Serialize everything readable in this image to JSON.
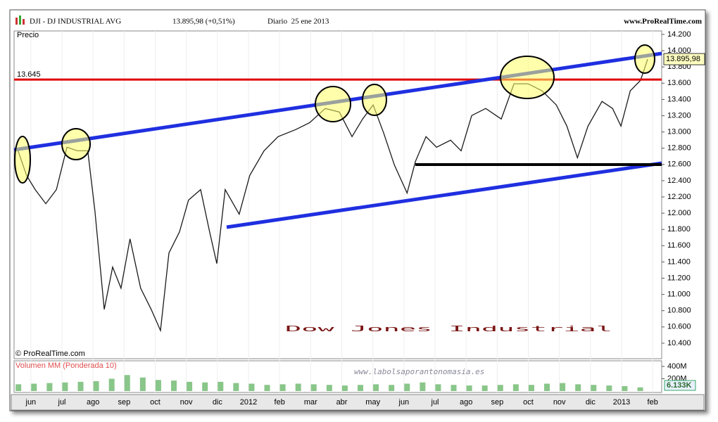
{
  "chart_data": [
    {
      "type": "line",
      "header": {
        "symbol": "DJI - DJ INDUSTRIAL AVG",
        "quote": "13.895,98 (+0,51%)",
        "period": "Diario  25 ene 2013",
        "source": "www.ProRealTime.com"
      },
      "panel_label": "Precio",
      "copyright": "© ProRealTime.com",
      "annotation": "Dow Jones Industrial",
      "watermark": "www.labolsaporantonomasia.es",
      "x": [
        -0.41,
        -0.14,
        0.14,
        0.48,
        0.82,
        1.16,
        1.49,
        1.83,
        2.06,
        2.36,
        2.63,
        2.9,
        3.19,
        3.53,
        3.87,
        4.17,
        4.44,
        4.78,
        5.07,
        5.46,
        5.75,
        5.98,
        6.25,
        6.7,
        7.04,
        7.5,
        7.95,
        8.52,
        8.97,
        9.47,
        9.92,
        10.33,
        10.67,
        11.01,
        11.35,
        11.69,
        12.1,
        12.37,
        12.71,
        13.05,
        13.5,
        13.84,
        14.18,
        14.63,
        15.13,
        15.54,
        15.99,
        16.44,
        16.9,
        17.24,
        17.58,
        17.92,
        18.37,
        18.71,
        18.98,
        19.28,
        19.61,
        19.84
      ],
      "values": [
        12768,
        12465,
        12290,
        12117,
        12290,
        12812,
        12768,
        12768,
        12030,
        10816,
        11337,
        11076,
        11684,
        11076,
        10816,
        10556,
        11510,
        11770,
        12161,
        12290,
        11770,
        11380,
        12290,
        11987,
        12465,
        12768,
        12942,
        13029,
        13115,
        13289,
        13246,
        12942,
        13159,
        13332,
        12985,
        12595,
        12248,
        12638,
        12942,
        12812,
        12899,
        12768,
        13202,
        13289,
        13159,
        13593,
        13593,
        13506,
        13332,
        13072,
        12682,
        13072,
        13376,
        13289,
        13072,
        13506,
        13636,
        13896
      ],
      "color": "#1a1a1a",
      "xlim": [
        -0.54,
        20.29
      ],
      "xticks": [
        {
          "value": 0,
          "label": "jun"
        },
        {
          "value": 1,
          "label": "jul"
        },
        {
          "value": 2,
          "label": "ago"
        },
        {
          "value": 3,
          "label": "sep"
        },
        {
          "value": 4,
          "label": "oct"
        },
        {
          "value": 5,
          "label": "nov"
        },
        {
          "value": 6,
          "label": "dic"
        },
        {
          "value": 7,
          "label": "2012"
        },
        {
          "value": 8,
          "label": "feb"
        },
        {
          "value": 9,
          "label": "mar"
        },
        {
          "value": 10,
          "label": "abr"
        },
        {
          "value": 11,
          "label": "may"
        },
        {
          "value": 12,
          "label": "jun"
        },
        {
          "value": 13,
          "label": "jul"
        },
        {
          "value": 14,
          "label": "ago"
        },
        {
          "value": 15,
          "label": "sep"
        },
        {
          "value": 16,
          "label": "oct"
        },
        {
          "value": 17,
          "label": "nov"
        },
        {
          "value": 18,
          "label": "dic"
        },
        {
          "value": 19,
          "label": "2013"
        },
        {
          "value": 20,
          "label": "feb"
        }
      ],
      "ylim": [
        10209,
        14243
      ],
      "yticks": [
        {
          "value": 10400,
          "label": "10.400"
        },
        {
          "value": 10600,
          "label": "10.600"
        },
        {
          "value": 10800,
          "label": "10.800"
        },
        {
          "value": 11000,
          "label": "11.000"
        },
        {
          "value": 11200,
          "label": "11.200"
        },
        {
          "value": 11400,
          "label": "11.400"
        },
        {
          "value": 11600,
          "label": "11.600"
        },
        {
          "value": 11800,
          "label": "11.800"
        },
        {
          "value": 12000,
          "label": "12.000"
        },
        {
          "value": 12200,
          "label": "12.200"
        },
        {
          "value": 12400,
          "label": "12.400"
        },
        {
          "value": 12600,
          "label": "12.600"
        },
        {
          "value": 12800,
          "label": "12.800"
        },
        {
          "value": 13000,
          "label": "13.000"
        },
        {
          "value": 13200,
          "label": "13.200"
        },
        {
          "value": 13400,
          "label": "13.400"
        },
        {
          "value": 13600,
          "label": "13.600"
        },
        {
          "value": 13800,
          "label": "13.800"
        },
        {
          "value": 14000,
          "label": "14.000"
        },
        {
          "value": 14200,
          "label": "14.200"
        }
      ],
      "hline": {
        "value": 13645,
        "label": "13.645",
        "color": "#e00000"
      },
      "last_value": {
        "value": 13895.98,
        "label": "13.895,98"
      }
    },
    {
      "type": "bar",
      "title": "Volumen MM (Ponderada 10)",
      "x": [
        -0.4,
        0.1,
        0.6,
        1.1,
        1.6,
        2.1,
        2.6,
        3.1,
        3.6,
        4.1,
        4.6,
        5.1,
        5.6,
        6.1,
        6.6,
        7.1,
        7.6,
        8.1,
        8.6,
        9.1,
        9.6,
        10.1,
        10.6,
        11.1,
        11.6,
        12.1,
        12.6,
        13.1,
        13.6,
        14.1,
        14.6,
        15.1,
        15.6,
        16.1,
        16.6,
        17.1,
        17.6,
        18.1,
        18.6,
        19.1,
        19.6
      ],
      "values": [
        110,
        120,
        130,
        140,
        150,
        160,
        200,
        260,
        220,
        180,
        170,
        150,
        140,
        150,
        130,
        120,
        100,
        110,
        120,
        110,
        100,
        90,
        100,
        110,
        100,
        120,
        140,
        110,
        100,
        90,
        90,
        100,
        110,
        100,
        120,
        130,
        110,
        100,
        90,
        80,
        60
      ],
      "color": "#3aa03a",
      "ylim": [
        0,
        491
      ],
      "yticks": [
        {
          "value": 400,
          "label": "400M"
        },
        {
          "value": 200,
          "label": "200M"
        }
      ],
      "last_value_label": "6.133K"
    }
  ]
}
